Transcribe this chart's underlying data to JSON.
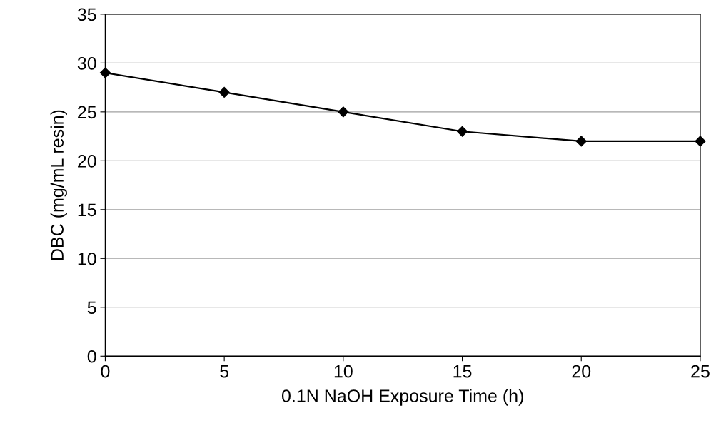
{
  "chart_data": {
    "type": "line",
    "xlabel": "0.1N NaOH Exposure Time (h)",
    "ylabel": "DBC (mg/mL resin)",
    "x": [
      0,
      5,
      10,
      15,
      20,
      25
    ],
    "series": [
      {
        "color": "#000000",
        "values": [
          29,
          27,
          25,
          23,
          22,
          22
        ]
      }
    ],
    "xlim": [
      0,
      25
    ],
    "xticks": [
      0,
      5,
      10,
      15,
      20,
      25
    ],
    "ylim": [
      0,
      35
    ],
    "yticks": [
      0,
      5,
      10,
      15,
      20,
      25,
      30,
      35
    ],
    "grid": "y",
    "marker": "diamond",
    "line_style": "solid"
  }
}
